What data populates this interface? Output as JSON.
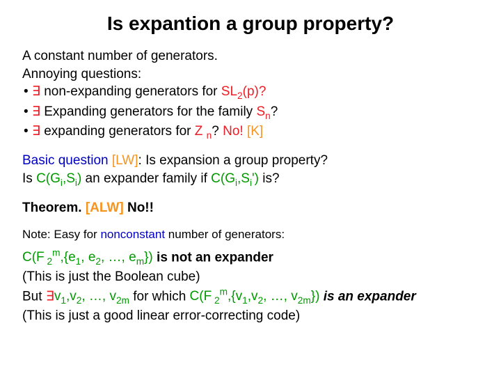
{
  "title": "Is expantion a group property?",
  "p1_l1": "A constant number of generators.",
  "p1_l2": "Annoying questions:",
  "b_dot": "• ",
  "exists": "∃",
  "b1_txt": " non-expanding generators for ",
  "b1_grp": "SL",
  "b1_sub": "2",
  "b1_tail": "(p)?",
  "b2_txt": " Expanding generators for the family ",
  "b2_grp": "S",
  "b2_sub": "n",
  "b2_tail": "?",
  "b3_txt": " expanding generators for ",
  "b3_grp": "Z ",
  "b3_sub": "n",
  "b3_mid": "? ",
  "b3_no": "No!",
  "b3_cite": " [K]",
  "bq_pre": "Basic question",
  "bq_cite": " [LW]",
  "bq_post": ":  Is expansion a group property?",
  "bq_l2_a": "Is ",
  "bq_l2_b": "C(G",
  "bq_i": "i",
  "bq_l2_c": ",S",
  "bq_l2_d": ")",
  "bq_l2_e": " an expander family if ",
  "bq_l2_f": "C(G",
  "bq_l2_g": ",S",
  "bq_iprime": "i",
  "bq_prime": "')",
  "bq_l2_h": " is?",
  "thm_a": "Theorem.  ",
  "thm_cite": "[ALW]",
  "thm_b": "   No!!",
  "note_pre": "Note:  Easy for ",
  "note_word": "nonconstant",
  "note_post": " number of generators:",
  "ex1_a": "C(F",
  "ex1_sub1": " 2",
  "ex1_sup_m": "m",
  "ex1_b": ",{e",
  "ex1_s1": "1",
  "ex1_c": ", e",
  "ex1_s2": "2",
  "ex1_d": ", …, e",
  "ex1_sm": "m",
  "ex1_e": "})",
  "ex1_tail": " is not an expander",
  "ex1_paren": "(This is just the Boolean cube)",
  "ex2_pre": "But ",
  "ex2_a": "v",
  "ex2_s1": "1",
  "ex2_b": ",v",
  "ex2_s2": "2",
  "ex2_c": ", …, v",
  "ex2_s2m": "2m",
  "ex2_mid": " for which ",
  "ex2_d": "C(F",
  "ex2_sub2": " 2",
  "ex2_e": ",{v",
  "ex2_f": ",v",
  "ex2_g": ", …, v",
  "ex2_h": "})",
  "ex2_tail": " is an expander",
  "ex2_paren": "(This is just a good linear error-correcting code)"
}
